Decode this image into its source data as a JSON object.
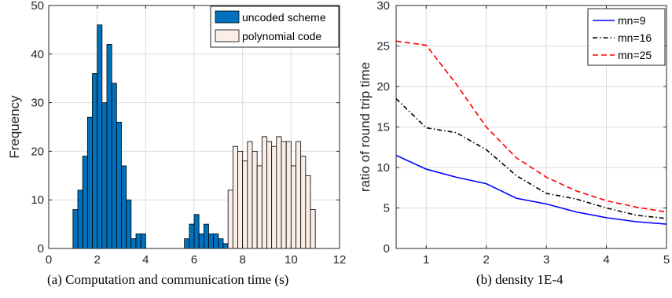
{
  "chart_data": [
    {
      "type": "bar",
      "subtype": "histogram",
      "caption": "(a)  Computation and communication time (s)",
      "ylabel": "Frequency",
      "xlim": [
        0,
        12
      ],
      "ylim": [
        0,
        50
      ],
      "xticks": [
        0,
        2,
        4,
        6,
        8,
        10,
        12
      ],
      "yticks": [
        0,
        10,
        20,
        30,
        40,
        50
      ],
      "bin_width": 0.2,
      "grid": true,
      "legend_position": "top-right",
      "series": [
        {
          "name": "uncoded scheme",
          "color": "#0072bd",
          "bin_starts": [
            1.0,
            1.2,
            1.4,
            1.6,
            1.8,
            2.0,
            2.2,
            2.4,
            2.6,
            2.8,
            3.0,
            3.2,
            3.4,
            3.6,
            3.8,
            5.6,
            5.8,
            6.0,
            6.2,
            6.4,
            6.6,
            6.8,
            7.0,
            7.2
          ],
          "values": [
            8,
            12,
            19,
            27,
            36,
            46,
            30,
            42,
            34,
            26,
            17,
            10,
            2,
            3,
            3,
            2,
            5,
            7,
            3,
            5,
            3,
            3,
            2,
            1
          ]
        },
        {
          "name": "polynomial code",
          "color": "#fbeee6",
          "bin_starts": [
            7.4,
            7.6,
            7.8,
            8.0,
            8.2,
            8.4,
            8.6,
            8.8,
            9.0,
            9.2,
            9.4,
            9.6,
            9.8,
            10.0,
            10.2,
            10.4,
            10.6,
            10.8
          ],
          "values": [
            12,
            21,
            20,
            18,
            22,
            20,
            17,
            23,
            22,
            21,
            23,
            22,
            22,
            17,
            22,
            19,
            15,
            8
          ]
        }
      ]
    },
    {
      "type": "line",
      "caption": "(b) density 1E-4",
      "ylabel": "ratio of round trip time",
      "xlim": [
        0.5,
        5
      ],
      "ylim": [
        0,
        30
      ],
      "xticks": [
        1,
        2,
        3,
        4,
        5
      ],
      "yticks": [
        0,
        5,
        10,
        15,
        20,
        25,
        30
      ],
      "grid": true,
      "legend_position": "top-right",
      "x": [
        0.5,
        1,
        1.5,
        2,
        2.5,
        3,
        3.5,
        4,
        4.5,
        5
      ],
      "series": [
        {
          "name": "mn=9",
          "color": "#0000ff",
          "style": "solid",
          "values": [
            11.5,
            9.8,
            8.8,
            8.0,
            6.2,
            5.5,
            4.5,
            3.8,
            3.3,
            3.0
          ]
        },
        {
          "name": "mn=16",
          "color": "#000000",
          "style": "dashdot",
          "values": [
            18.5,
            14.9,
            14.3,
            12.2,
            9.0,
            6.8,
            6.1,
            5.0,
            4.1,
            3.7
          ]
        },
        {
          "name": "mn=25",
          "color": "#ff0000",
          "style": "dashed",
          "values": [
            25.6,
            25.1,
            20.3,
            15.0,
            11.2,
            8.8,
            7.1,
            5.9,
            5.1,
            4.5
          ]
        }
      ]
    }
  ]
}
